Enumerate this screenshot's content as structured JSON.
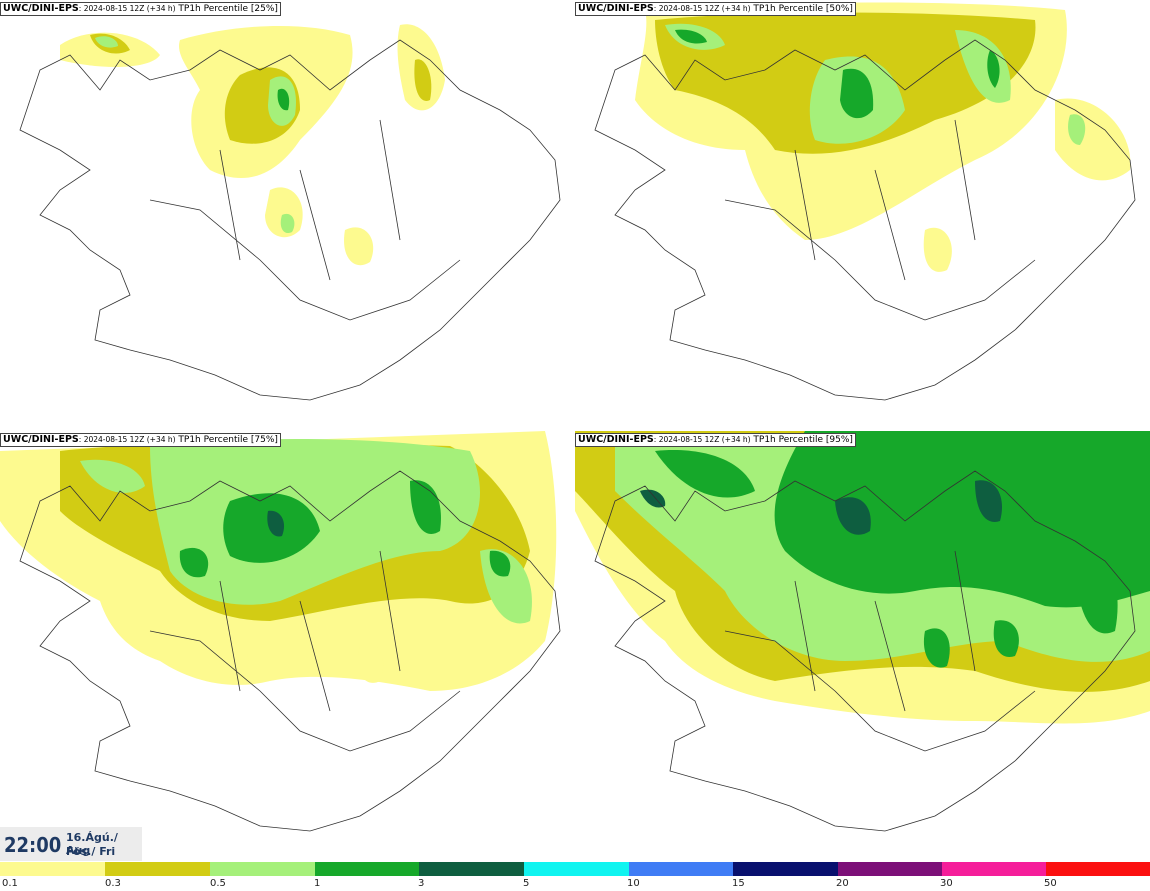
{
  "panels": [
    {
      "model": "UWC/DINI-EPS",
      "run": ": 2024-08-15 12Z (+34 h)",
      "param": " TP1h Percentile [25%]"
    },
    {
      "model": "UWC/DINI-EPS",
      "run": ": 2024-08-15 12Z (+34 h)",
      "param": " TP1h Percentile [50%]"
    },
    {
      "model": "UWC/DINI-EPS",
      "run": ": 2024-08-15 12Z (+34 h)",
      "param": " TP1h Percentile [75%]"
    },
    {
      "model": "UWC/DINI-EPS",
      "run": ": 2024-08-15 12Z (+34 h)",
      "param": " TP1h Percentile [95%]"
    }
  ],
  "time": {
    "clock": "22:00",
    "date_line1": "16.Ágú./ Aug",
    "date_line2": "Fös./ Fri"
  },
  "legend": {
    "colors": [
      "#fdfa8f",
      "#d2cc14",
      "#a5f07a",
      "#16a82a",
      "#0e5e40",
      "#10f4f0",
      "#3f7cf5",
      "#08106e",
      "#7c0f78",
      "#f51e9a",
      "#fb1010"
    ],
    "labels": [
      "0.1",
      "0.3",
      "0.5",
      "1",
      "3",
      "5",
      "10",
      "15",
      "20",
      "30",
      "50"
    ]
  },
  "map_colors": {
    "light_yellow": "#fdfa8f",
    "olive": "#d2cc14",
    "light_green": "#a5f07a",
    "green": "#16a82a",
    "dark_green": "#0e5e40",
    "outline": "#333333"
  }
}
